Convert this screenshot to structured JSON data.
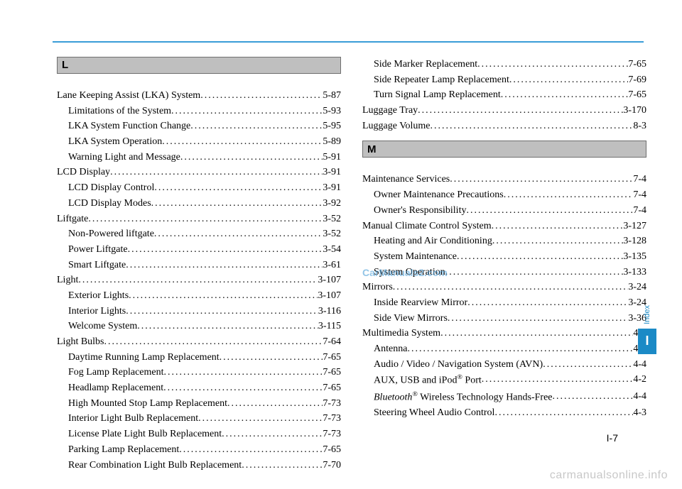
{
  "headings": {
    "L": "L",
    "M": "M"
  },
  "left": [
    {
      "type": "head",
      "letter": "L"
    },
    {
      "type": "gap"
    },
    {
      "label": "Lane Keeping Assist (LKA) System",
      "page": "5-87",
      "sub": false
    },
    {
      "label": "Limitations of the System",
      "page": "5-93",
      "sub": true
    },
    {
      "label": "LKA System Function Change",
      "page": "5-95",
      "sub": true
    },
    {
      "label": "LKA System Operation",
      "page": "5-89",
      "sub": true
    },
    {
      "label": "Warning Light and Message",
      "page": "5-91",
      "sub": true
    },
    {
      "label": "LCD Display",
      "page": "3-91",
      "sub": false
    },
    {
      "label": "LCD Display Control",
      "page": "3-91",
      "sub": true
    },
    {
      "label": "LCD Display Modes",
      "page": "3-92",
      "sub": true
    },
    {
      "label": "Liftgate",
      "page": "3-52",
      "sub": false
    },
    {
      "label": "Non-Powered liftgate",
      "page": "3-52",
      "sub": true
    },
    {
      "label": "Power Liftgate",
      "page": "3-54",
      "sub": true
    },
    {
      "label": "Smart Liftgate",
      "page": "3-61",
      "sub": true
    },
    {
      "label": "Light",
      "page": "3-107",
      "sub": false
    },
    {
      "label": "Exterior Lights",
      "page": "3-107",
      "sub": true
    },
    {
      "label": "Interior Lights",
      "page": "3-116",
      "sub": true
    },
    {
      "label": "Welcome System",
      "page": "3-115",
      "sub": true
    },
    {
      "label": "Light Bulbs",
      "page": "7-64",
      "sub": false
    },
    {
      "label": "Daytime Running Lamp Replacement",
      "page": "7-65",
      "sub": true
    },
    {
      "label": "Fog Lamp Replacement",
      "page": "7-65",
      "sub": true
    },
    {
      "label": "Headlamp Replacement",
      "page": "7-65",
      "sub": true
    },
    {
      "label": "High Mounted Stop Lamp Replacement",
      "page": "7-73",
      "sub": true
    },
    {
      "label": "Interior Light Bulb Replacement",
      "page": "7-73",
      "sub": true
    },
    {
      "label": "License Plate Light Bulb Replacement",
      "page": "7-73",
      "sub": true
    },
    {
      "label": "Parking Lamp Replacement",
      "page": "7-65",
      "sub": true
    },
    {
      "label": "Rear Combination Light Bulb Replacement",
      "page": "7-70",
      "sub": true
    }
  ],
  "right": [
    {
      "label": "Side Marker Replacement",
      "page": "7-65",
      "sub": true
    },
    {
      "label": "Side Repeater Lamp Replacement",
      "page": "7-69",
      "sub": true
    },
    {
      "label": "Turn Signal Lamp Replacement",
      "page": "7-65",
      "sub": true
    },
    {
      "label": "Luggage Tray",
      "page": "3-170",
      "sub": false
    },
    {
      "label": "Luggage Volume",
      "page": "8-3",
      "sub": false
    },
    {
      "type": "gap"
    },
    {
      "type": "head",
      "letter": "M"
    },
    {
      "type": "gap"
    },
    {
      "label": "Maintenance Services",
      "page": "7-4",
      "sub": false
    },
    {
      "label": "Owner Maintenance Precautions",
      "page": "7-4",
      "sub": true
    },
    {
      "label": "Owner's Responsibility",
      "page": "7-4",
      "sub": true
    },
    {
      "label": "Manual Climate Control System",
      "page": "3-127",
      "sub": false
    },
    {
      "label": "Heating and Air Conditioning",
      "page": "3-128",
      "sub": true
    },
    {
      "label": "System Maintenance",
      "page": "3-135",
      "sub": true
    },
    {
      "label": "System Operation",
      "page": "3-133",
      "sub": true
    },
    {
      "label": "Mirrors",
      "page": "3-24",
      "sub": false
    },
    {
      "label": "Inside Rearview Mirror",
      "page": "3-24",
      "sub": true
    },
    {
      "label": "Side View Mirrors",
      "page": "3-36",
      "sub": true
    },
    {
      "label": "Multimedia System",
      "page": "4-3",
      "sub": false
    },
    {
      "label": "Antenna",
      "page": "4-2",
      "sub": true
    },
    {
      "label": "Audio / Video / Navigation System (AVN)",
      "page": "4-4",
      "sub": true
    },
    {
      "label": "AUX, USB and iPod<sup>®</sup> Port",
      "page": "4-2",
      "sub": true,
      "html": true
    },
    {
      "label": "<em>Bluetooth</em><sup>®</sup> Wireless Technology Hands-Free",
      "page": "4-4",
      "sub": true,
      "html": true
    },
    {
      "label": "Steering Wheel Audio Control",
      "page": "4-3",
      "sub": true
    }
  ],
  "tab": {
    "label": "Index",
    "letter": "I"
  },
  "pageNumber": "I-7",
  "watermarkMain": "CarManuals2.com",
  "footerWatermark": "carmanualsonline.info"
}
